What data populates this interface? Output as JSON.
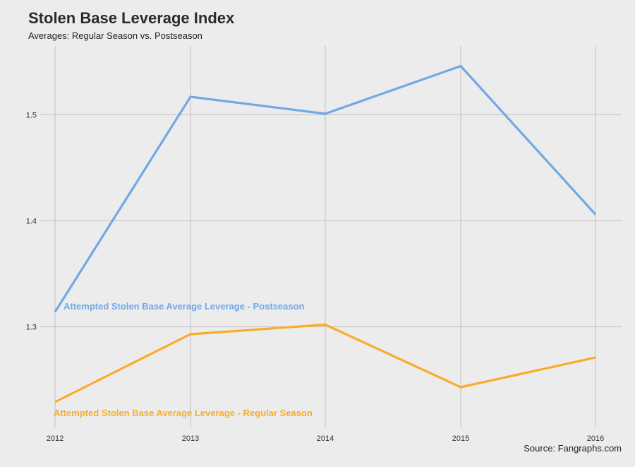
{
  "colors": {
    "background": "#ececec",
    "grid": "#c8c8c8",
    "postseason": "#72a8e4",
    "regular_season": "#f9ac2b"
  },
  "source": "Source: Fangraphs.com",
  "chart_data": {
    "type": "line",
    "title": "Stolen Base Leverage Index",
    "subtitle": "Averages: Regular Season vs. Postseason",
    "xlabel": "",
    "ylabel": "",
    "x": [
      2012,
      2013,
      2014,
      2015,
      2016
    ],
    "x_tick_labels": [
      "2012",
      "2013",
      "2014",
      "2015",
      "2016"
    ],
    "y_ticks": [
      1.3,
      1.4,
      1.5
    ],
    "y_tick_labels": [
      "1.3",
      "1.4",
      "1.5"
    ],
    "ylim": [
      1.205,
      1.565
    ],
    "grid": true,
    "legend": "none",
    "series": [
      {
        "name": "Attempted Stolen Base Average Leverage - Postseason",
        "values": [
          1.314,
          1.517,
          1.501,
          1.546,
          1.406
        ],
        "color": "#72a8e4"
      },
      {
        "name": "Attempted Stolen Base Average Leverage - Regular Season",
        "values": [
          1.229,
          1.293,
          1.302,
          1.243,
          1.271
        ],
        "color": "#f9ac2b"
      }
    ]
  }
}
